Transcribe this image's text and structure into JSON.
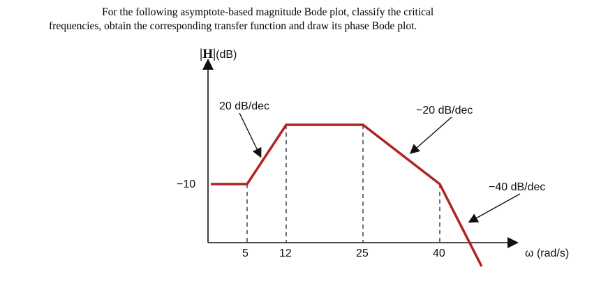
{
  "problem": {
    "line1": "For the following asymptote-based magnitude Bode plot, classify the critical",
    "line2": "frequencies, obtain the corresponding transfer function and draw its phase Bode plot."
  },
  "chart_data": {
    "type": "line",
    "title": "",
    "ylabel": {
      "bold": "H",
      "unit": "(dB)"
    },
    "xlabel": "ω (rad/s)",
    "x_ticks": [
      "5",
      "12",
      "25",
      "40"
    ],
    "y_ticks": [
      "−10"
    ],
    "series": [
      {
        "x": [
          0,
          5,
          12,
          25,
          40,
          45
        ],
        "y": [
          "-10",
          "-10",
          "peak",
          "peak",
          "knee",
          "below axis"
        ]
      }
    ],
    "annotations": [
      {
        "text": "20 dB/dec"
      },
      {
        "text": "−20 dB/dec"
      },
      {
        "text": "−40 dB/dec"
      }
    ],
    "line_color": "#b22222",
    "grid": false
  }
}
